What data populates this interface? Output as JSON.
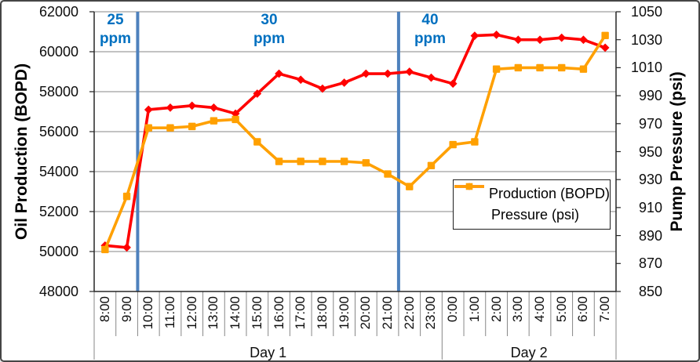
{
  "chart_data": {
    "type": "line",
    "title": "",
    "categories": [
      "8:00",
      "9:00",
      "10:00",
      "11:00",
      "12:00",
      "13:00",
      "14:00",
      "15:00",
      "16:00",
      "17:00",
      "18:00",
      "19:00",
      "20:00",
      "21:00",
      "22:00",
      "23:00",
      "0:00",
      "1:00",
      "2:00",
      "3:00",
      "4:00",
      "5:00",
      "6:00",
      "7:00"
    ],
    "category_groups": [
      {
        "label": "Day 1",
        "count": 16
      },
      {
        "label": "Day 2",
        "count": 8
      }
    ],
    "series": [
      {
        "name": "Production (BOPD)",
        "axis": "left",
        "color": "#FF0000",
        "marker": "diamond",
        "values": [
          50300,
          50200,
          57100,
          57200,
          57300,
          57200,
          56900,
          57900,
          58900,
          58600,
          58150,
          58450,
          58900,
          58900,
          59000,
          58700,
          58400,
          60800,
          60850,
          60600,
          60600,
          60700,
          60600,
          60200
        ]
      },
      {
        "name": "Pressure (psi)",
        "axis": "right",
        "color": "#FFA000",
        "marker": "square",
        "values": [
          880,
          918,
          967,
          967,
          968,
          972,
          973,
          957,
          943,
          943,
          943,
          943,
          942,
          934,
          925,
          940,
          955,
          957,
          1009,
          1010,
          1010,
          1010,
          1009,
          1033
        ]
      }
    ],
    "left_axis": {
      "title": "Oil Production (BOPD)",
      "min": 48000,
      "max": 62000,
      "tick_step": 2000,
      "ticks": [
        62000,
        60000,
        58000,
        56000,
        54000,
        52000,
        50000,
        48000
      ]
    },
    "right_axis": {
      "title": "Pump Pressure (psi)",
      "min": 850,
      "max": 1050,
      "tick_step": 20,
      "ticks": [
        1050,
        1030,
        1010,
        990,
        970,
        950,
        930,
        910,
        890,
        870,
        850
      ]
    },
    "dose_annotations": {
      "color": "#0070C0",
      "divider_color": "#4E81BD",
      "regions": [
        {
          "lines": [
            "25",
            "ppm"
          ]
        },
        {
          "lines": [
            "30",
            "ppm"
          ]
        },
        {
          "lines": [
            "40",
            "ppm"
          ]
        }
      ],
      "dividers_after_category_index": [
        1,
        13
      ]
    },
    "grid": true,
    "gridline_color": "#878787",
    "legend_position": "center-right"
  }
}
